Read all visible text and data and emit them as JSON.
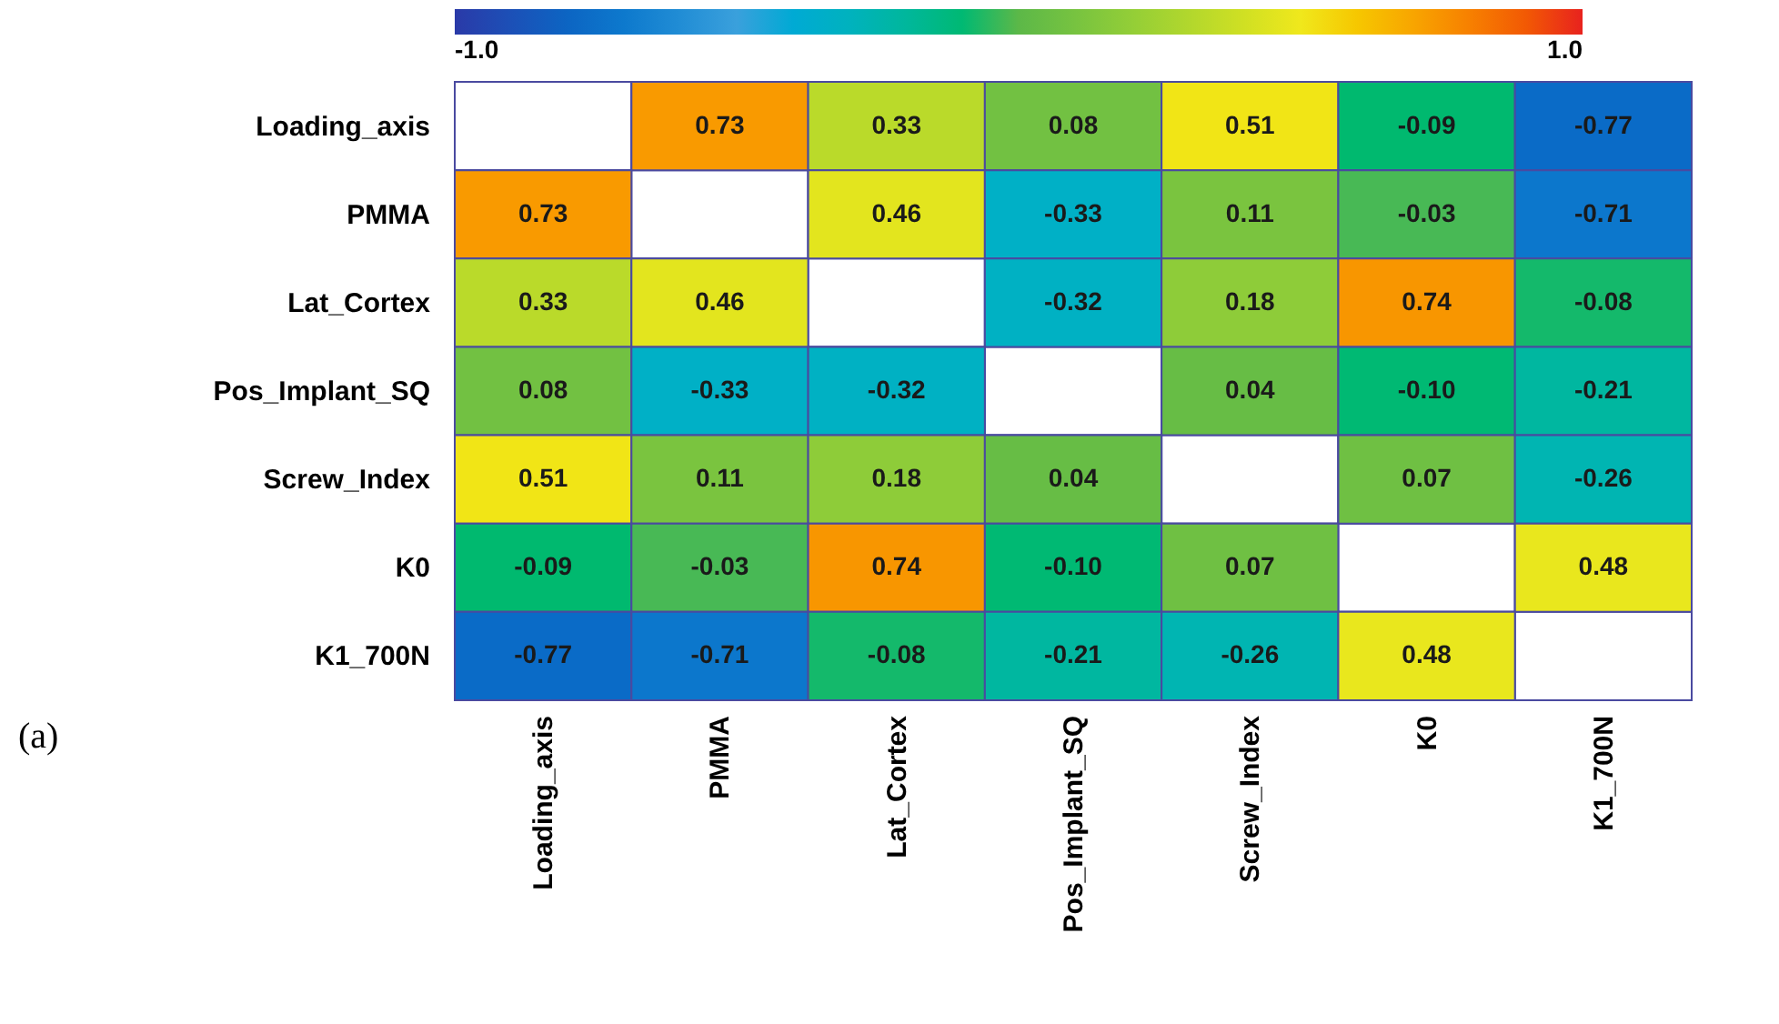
{
  "chart_data": {
    "type": "heatmap",
    "categories": [
      "Loading_axis",
      "PMMA",
      "Lat_Cortex",
      "Pos_Implant_SQ",
      "Screw_Index",
      "K0",
      "K1_700N"
    ],
    "y_categories": [
      "Loading_axis",
      "PMMA",
      "Lat_Cortex",
      "Pos_Implant_SQ",
      "Screw_Index",
      "K0",
      "K1_700N"
    ],
    "cells": [
      [
        null,
        0.73,
        0.33,
        0.08,
        0.51,
        -0.09,
        -0.77
      ],
      [
        0.73,
        null,
        0.46,
        -0.33,
        0.11,
        -0.03,
        -0.71
      ],
      [
        0.33,
        0.46,
        null,
        -0.32,
        0.18,
        0.74,
        -0.08
      ],
      [
        0.08,
        -0.33,
        -0.32,
        null,
        0.04,
        -0.1,
        -0.21
      ],
      [
        0.51,
        0.11,
        0.18,
        0.04,
        null,
        0.07,
        -0.26
      ],
      [
        -0.09,
        -0.03,
        0.74,
        -0.1,
        0.07,
        null,
        0.48
      ],
      [
        -0.77,
        -0.71,
        -0.08,
        -0.21,
        -0.26,
        0.48,
        null
      ]
    ],
    "cell_labels": [
      [
        null,
        "0.73",
        "0.33",
        "0.08",
        "0.51",
        "-0.09",
        "-0.77"
      ],
      [
        "0.73",
        null,
        "0.46",
        "-0.33",
        "0.11",
        "-0.03",
        "-0.71"
      ],
      [
        "0.33",
        "0.46",
        null,
        "-0.32",
        "0.18",
        "0.74",
        "-0.08"
      ],
      [
        "0.08",
        "-0.33",
        "-0.32",
        null,
        "0.04",
        "-0.10",
        "-0.21"
      ],
      [
        "0.51",
        "0.11",
        "0.18",
        "0.04",
        null,
        "0.07",
        "-0.26"
      ],
      [
        "-0.09",
        "-0.03",
        "0.74",
        "-0.10",
        "0.07",
        null,
        "0.48"
      ],
      [
        "-0.77",
        "-0.71",
        "-0.08",
        "-0.21",
        "-0.26",
        "0.48",
        null
      ]
    ],
    "clim": [
      -1,
      1
    ],
    "cticks": [
      {
        "value": -1,
        "label": "-1.0"
      },
      {
        "value": 1,
        "label": "1.0"
      }
    ],
    "annotations": [
      "(a)"
    ]
  }
}
